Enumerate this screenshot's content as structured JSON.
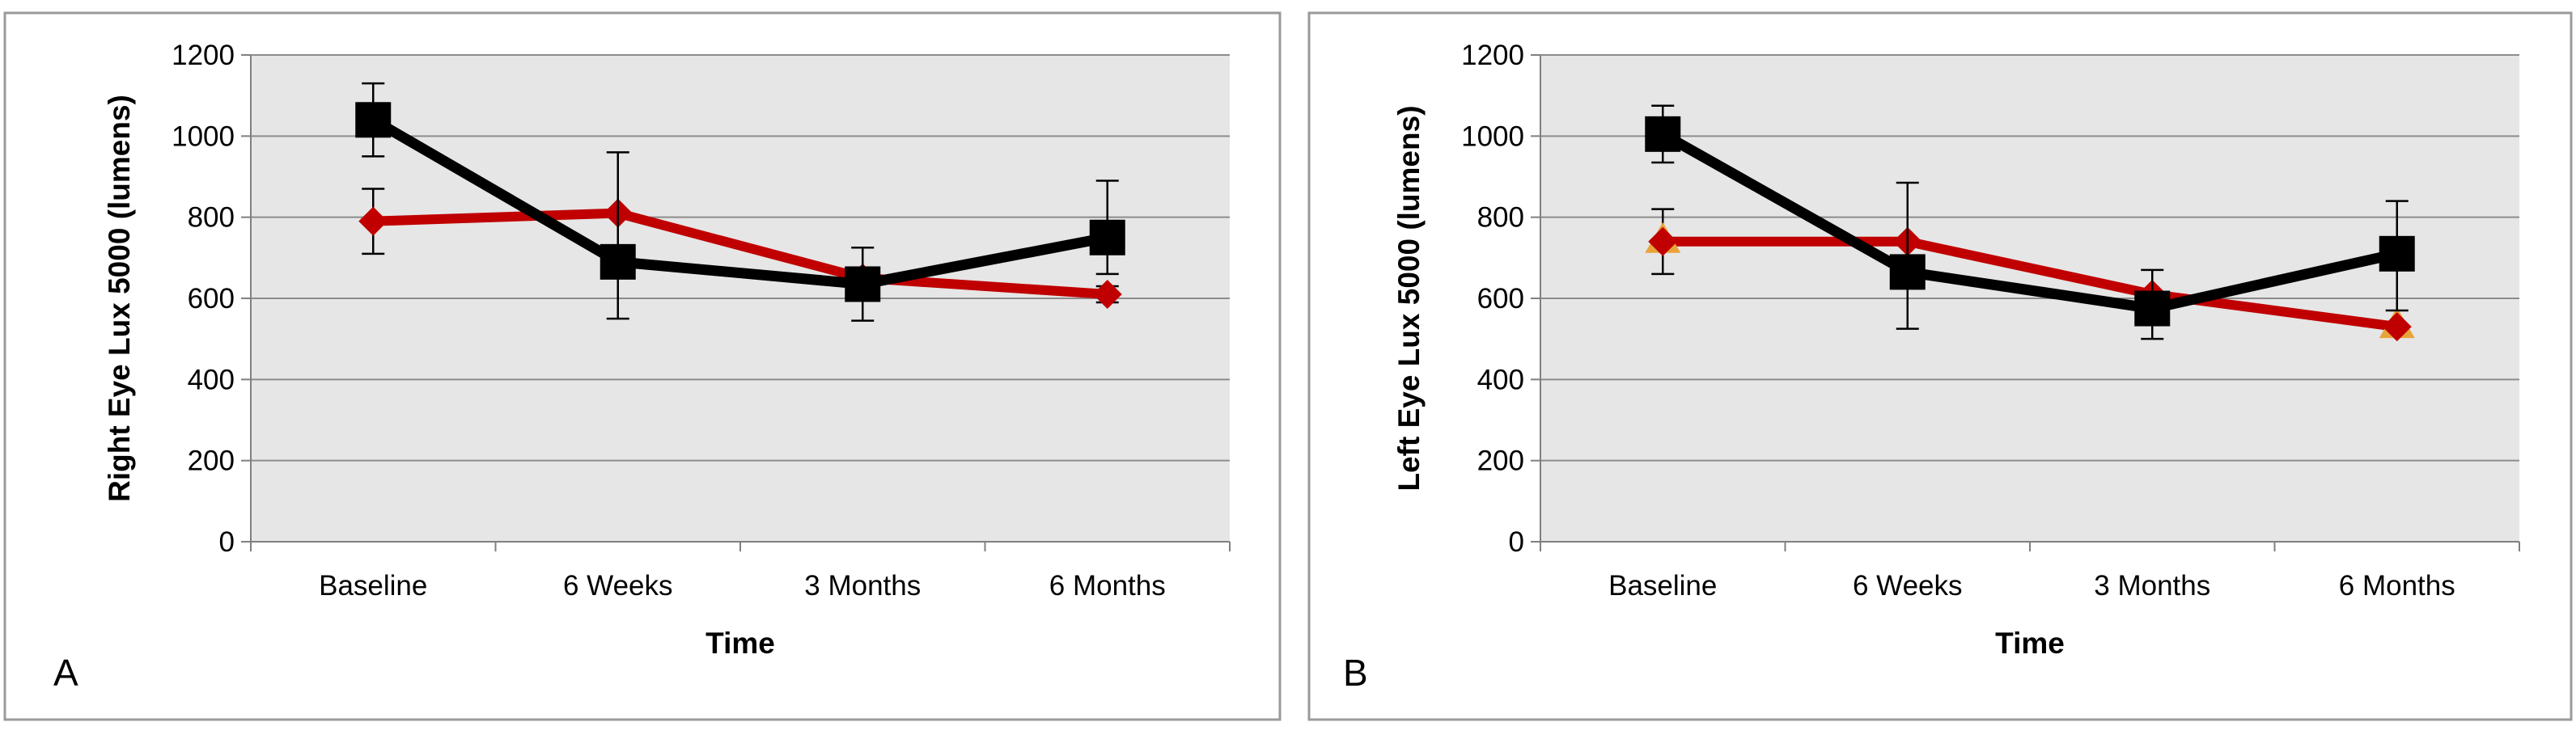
{
  "figure": {
    "colors": {
      "plot_bg": "#e6e6e6",
      "grid": "#8c8c8c",
      "axis": "#808080",
      "red_series": "#c00000",
      "black_series": "#000000",
      "orange_marker": "#e8a33a",
      "frame": "#9a9a9a"
    }
  },
  "chart_data": [
    {
      "type": "line",
      "panel_label": "A",
      "title": "",
      "xlabel": "Time",
      "ylabel": "Right Eye Lux 5000 (lumens)",
      "categories": [
        "Baseline",
        "6 Weeks",
        "3 Months",
        "6 Months"
      ],
      "ylim": [
        0,
        1200
      ],
      "yticks": [
        "0",
        "200",
        "400",
        "600",
        "800",
        "1000",
        "1200"
      ],
      "grid": true,
      "series": [
        {
          "name": "red-series",
          "color": "#c00000",
          "marker": "diamond",
          "values": [
            790,
            810,
            650,
            610
          ],
          "error_minus": [
            80,
            0,
            0,
            20
          ],
          "error_plus": [
            80,
            0,
            0,
            20
          ]
        },
        {
          "name": "black-series",
          "color": "#000000",
          "marker": "square",
          "values": [
            1040,
            690,
            635,
            750
          ],
          "error_minus": [
            90,
            140,
            90,
            90
          ],
          "error_plus": [
            90,
            270,
            90,
            140
          ]
        }
      ]
    },
    {
      "type": "line",
      "panel_label": "B",
      "title": "",
      "xlabel": "Time",
      "ylabel": "Left Eye Lux 5000 (lumens)",
      "categories": [
        "Baseline",
        "6 Weeks",
        "3 Months",
        "6 Months"
      ],
      "ylim": [
        0,
        1200
      ],
      "yticks": [
        "0",
        "200",
        "400",
        "600",
        "800",
        "1000",
        "1200"
      ],
      "grid": true,
      "series": [
        {
          "name": "red-series",
          "color": "#c00000",
          "marker": "diamond",
          "values": [
            740,
            740,
            610,
            530
          ],
          "error_minus": [
            80,
            0,
            0,
            0
          ],
          "error_plus": [
            80,
            0,
            0,
            0
          ]
        },
        {
          "name": "black-series",
          "color": "#000000",
          "marker": "square",
          "values": [
            1005,
            665,
            575,
            710
          ],
          "error_minus": [
            70,
            140,
            75,
            140
          ],
          "error_plus": [
            70,
            220,
            95,
            130
          ]
        }
      ]
    }
  ]
}
